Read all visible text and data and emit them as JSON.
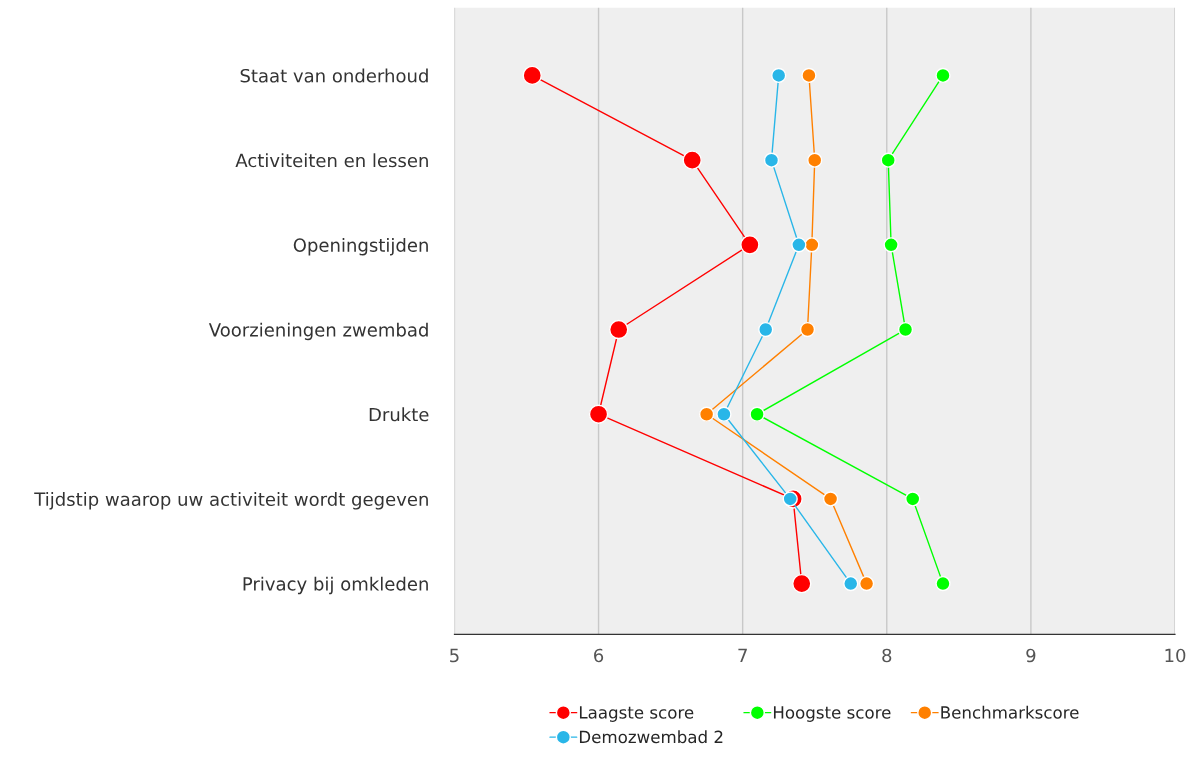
{
  "chart_data": {
    "type": "line",
    "orientation": "horizontal",
    "categories": [
      "Staat van onderhoud",
      "Activiteiten en lessen",
      "Openingstijden",
      "Voorzieningen zwembad",
      "Drukte",
      "Tijdstip waarop uw activiteit wordt gegeven",
      "Privacy bij omkleden"
    ],
    "series": [
      {
        "name": "Laagste score",
        "color": "#ff0000",
        "values": [
          5.54,
          6.65,
          7.05,
          6.14,
          6.0,
          7.35,
          7.41
        ]
      },
      {
        "name": "Hoogste score",
        "color": "#00ff00",
        "values": [
          8.39,
          8.01,
          8.03,
          8.13,
          7.1,
          8.18,
          8.39
        ]
      },
      {
        "name": "Benchmarkscore",
        "color": "#ff8000",
        "values": [
          7.46,
          7.5,
          7.48,
          7.45,
          6.75,
          7.61,
          7.86
        ]
      },
      {
        "name": "Demozwembad 2",
        "color": "#29b6e8",
        "values": [
          7.25,
          7.2,
          7.39,
          7.16,
          6.87,
          7.33,
          7.75
        ]
      }
    ],
    "xlim": [
      5,
      10
    ],
    "xticks": [
      5,
      6,
      7,
      8,
      9,
      10
    ],
    "grid": "x",
    "legend": "bottom",
    "marker": "circle",
    "line_style": "solid"
  }
}
